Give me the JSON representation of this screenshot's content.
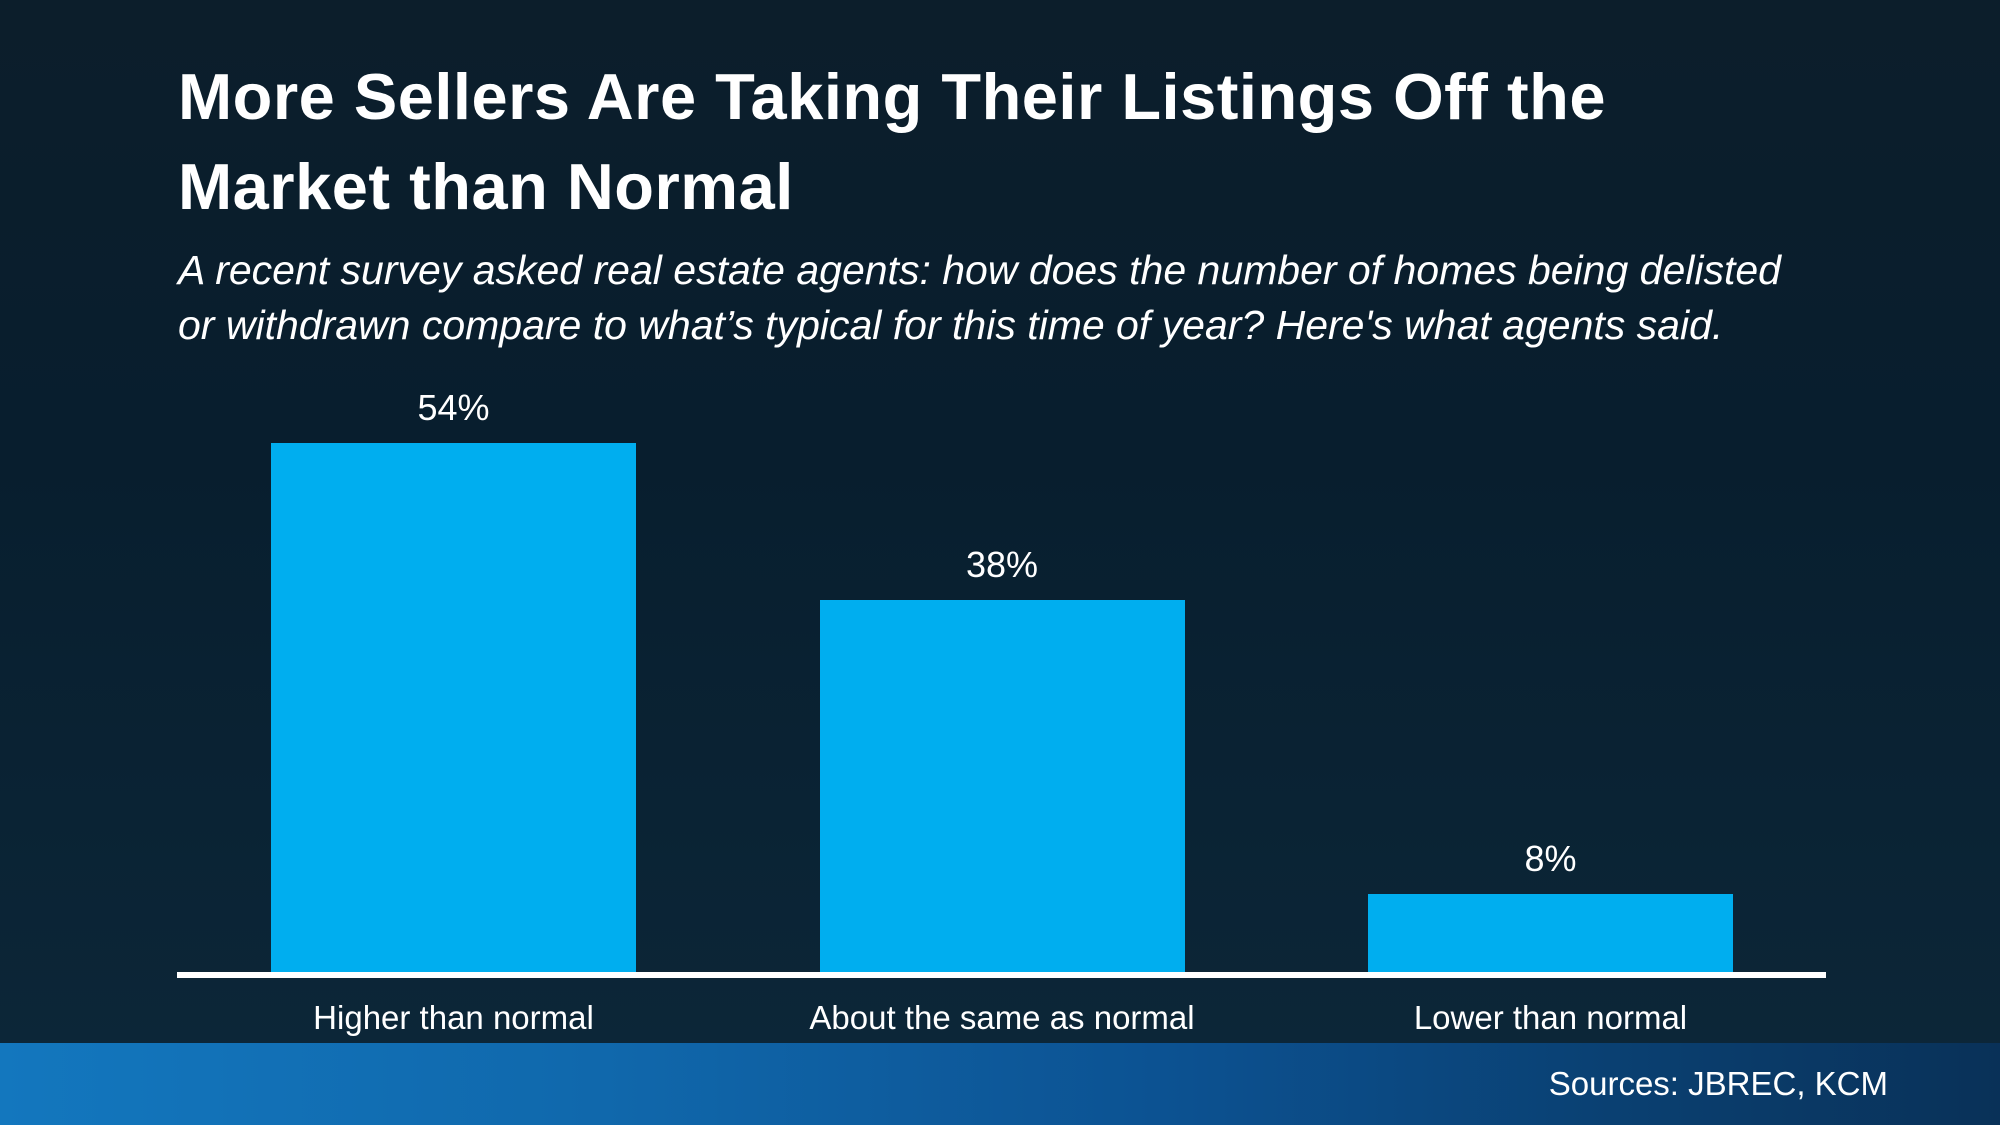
{
  "page": {
    "background_top_color": "#0C1E2B",
    "background_bottom_color": "#0D2739",
    "text_color": "#FFFFFF"
  },
  "header": {
    "title_lines": [
      "More Sellers Are Taking Their Listings Off the",
      "Market than Normal"
    ],
    "subtitle_lines": [
      "A recent survey asked real estate agents: how does the number of homes being delisted",
      "or withdrawn compare to what’s typical for this time of year? Here's what agents said."
    ]
  },
  "chart_data": {
    "type": "bar",
    "title": "More Sellers Are Taking Their Listings Off the Market than Normal",
    "subtitle": "A recent survey asked real estate agents: how does the number of homes being delisted or withdrawn compare to what’s typical for this time of year? Here's what agents said.",
    "categories": [
      "Higher than normal",
      "About the same as normal",
      "Lower than normal"
    ],
    "values": [
      54,
      38,
      8
    ],
    "value_labels": [
      "54%",
      "38%",
      "8%"
    ],
    "xlabel": "",
    "ylabel": "",
    "ylim": [
      0,
      60
    ],
    "grid": false,
    "legend": false,
    "y_axis_shown": false,
    "bar_color": "#00AEEF",
    "axis_line_color": "#FFFFFF",
    "label_color": "#FFFFFF"
  },
  "footer": {
    "sources_label": "Sources: JBREC, KCM",
    "band_left_color": "#1377BE",
    "band_right_color": "#093158"
  }
}
